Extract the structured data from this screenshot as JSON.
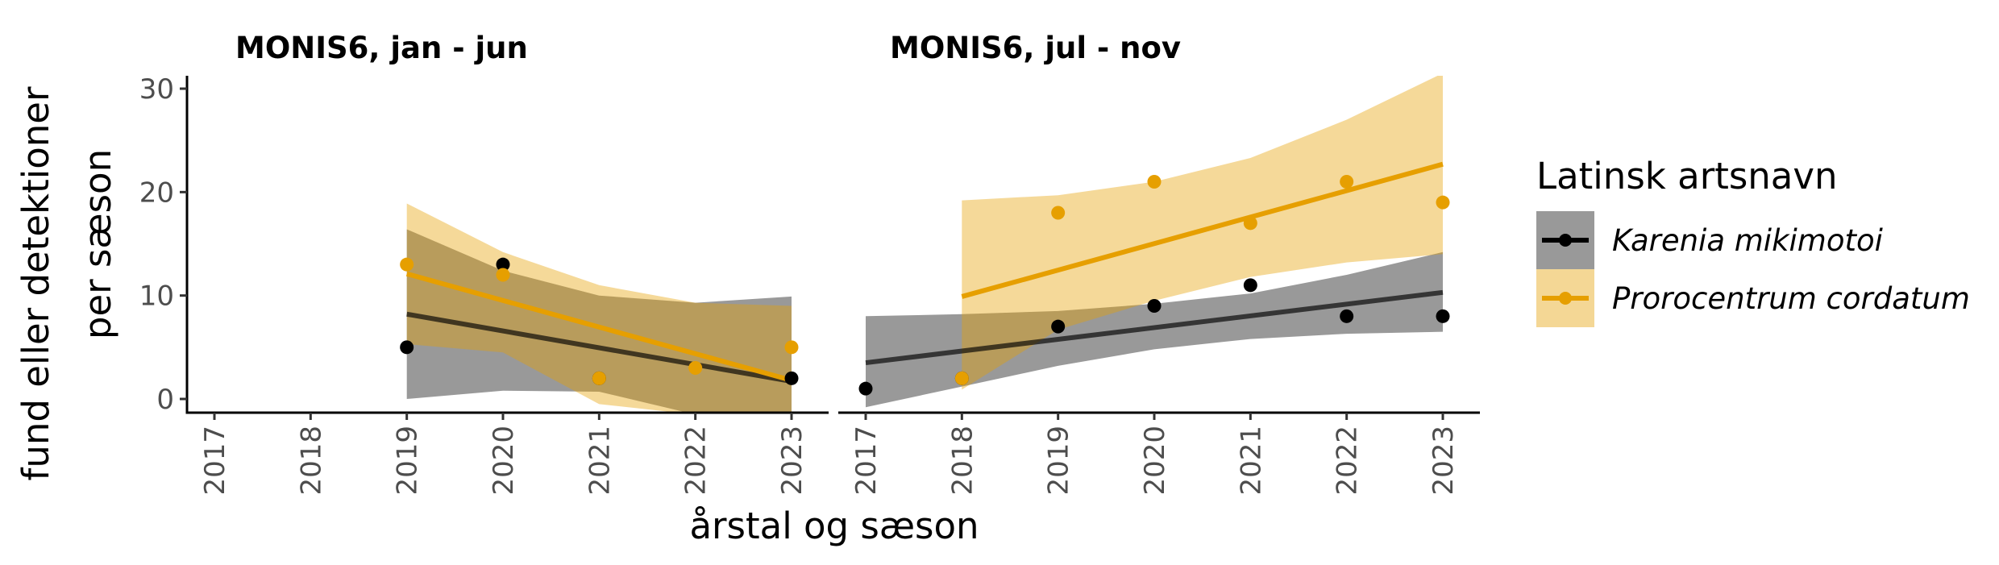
{
  "chart_data": {
    "type": "scatter",
    "xlabel": "årstal og sæson",
    "ylabel_line1": "fund eller detektioner",
    "ylabel_line2": "per sæson",
    "ylim": [
      -1.5,
      31.5
    ],
    "yticks": [
      0,
      10,
      20,
      30
    ],
    "xlim": [
      2016.8,
      2023.3
    ],
    "xticks": [
      "2017",
      "2018",
      "2019",
      "2020",
      "2021",
      "2022",
      "2023"
    ],
    "grid": false,
    "legend_position": "right",
    "legend": {
      "title": "Latinsk artsnavn",
      "entries": [
        {
          "label": "Karenia mikimotoi",
          "color": "#000000",
          "band_color": "#999999"
        },
        {
          "label": "Prorocentrum cordatum",
          "color": "#E69F00",
          "band_color": "#F4D795"
        }
      ]
    },
    "panels": [
      {
        "title": "MONIS6, jan - jun",
        "series": [
          {
            "name": "Karenia mikimotoi",
            "points": [
              [
                2019,
                5
              ],
              [
                2020,
                13
              ],
              [
                2021,
                2
              ],
              [
                2023,
                2
              ]
            ],
            "fit": [
              [
                2019,
                8.2
              ],
              [
                2023,
                1.7
              ]
            ],
            "band_upper": [
              [
                2019,
                16.4
              ],
              [
                2020,
                12.4
              ],
              [
                2021,
                10.0
              ],
              [
                2022,
                9.3
              ],
              [
                2023,
                9.9
              ]
            ],
            "band_lower": [
              [
                2019,
                0.0
              ],
              [
                2020,
                0.8
              ],
              [
                2021,
                0.7
              ],
              [
                2022,
                -1.5
              ],
              [
                2023,
                -1.5
              ]
            ]
          },
          {
            "name": "Prorocentrum cordatum",
            "points": [
              [
                2019,
                13
              ],
              [
                2020,
                12
              ],
              [
                2021,
                2
              ],
              [
                2022,
                3
              ],
              [
                2023,
                5
              ]
            ],
            "fit": [
              [
                2019,
                12.1
              ],
              [
                2023,
                1.8
              ]
            ],
            "band_upper": [
              [
                2019,
                18.9
              ],
              [
                2020,
                14.2
              ],
              [
                2021,
                11.0
              ],
              [
                2022,
                9.3
              ],
              [
                2023,
                9.0
              ]
            ],
            "band_lower": [
              [
                2019,
                5.3
              ],
              [
                2020,
                4.5
              ],
              [
                2021,
                -0.5
              ],
              [
                2022,
                -1.5
              ],
              [
                2023,
                -1.5
              ]
            ]
          }
        ]
      },
      {
        "title": "MONIS6, jul - nov",
        "series": [
          {
            "name": "Karenia mikimotoi",
            "points": [
              [
                2017,
                1
              ],
              [
                2018,
                2
              ],
              [
                2019,
                7
              ],
              [
                2020,
                9
              ],
              [
                2021,
                11
              ],
              [
                2022,
                8
              ],
              [
                2023,
                8
              ]
            ],
            "fit": [
              [
                2017,
                3.5
              ],
              [
                2023,
                10.3
              ]
            ],
            "band_upper": [
              [
                2017,
                8.0
              ],
              [
                2018,
                8.2
              ],
              [
                2019,
                8.5
              ],
              [
                2020,
                9.2
              ],
              [
                2021,
                10.2
              ],
              [
                2022,
                12.0
              ],
              [
                2023,
                14.2
              ]
            ],
            "band_lower": [
              [
                2017,
                -0.8
              ],
              [
                2018,
                1.2
              ],
              [
                2019,
                3.2
              ],
              [
                2020,
                4.8
              ],
              [
                2021,
                5.8
              ],
              [
                2022,
                6.3
              ],
              [
                2023,
                6.5
              ]
            ]
          },
          {
            "name": "Prorocentrum cordatum",
            "points": [
              [
                2018,
                2
              ],
              [
                2019,
                18
              ],
              [
                2020,
                21
              ],
              [
                2021,
                17
              ],
              [
                2022,
                21
              ],
              [
                2023,
                19
              ]
            ],
            "fit": [
              [
                2018,
                9.9
              ],
              [
                2023,
                22.7
              ]
            ],
            "band_upper": [
              [
                2018,
                19.2
              ],
              [
                2019,
                19.7
              ],
              [
                2020,
                21.0
              ],
              [
                2021,
                23.3
              ],
              [
                2022,
                27.0
              ],
              [
                2023,
                31.5
              ]
            ],
            "band_lower": [
              [
                2018,
                0.9
              ],
              [
                2019,
                6.7
              ],
              [
                2020,
                9.5
              ],
              [
                2021,
                11.8
              ],
              [
                2022,
                13.2
              ],
              [
                2023,
                14.0
              ]
            ]
          }
        ]
      }
    ]
  }
}
